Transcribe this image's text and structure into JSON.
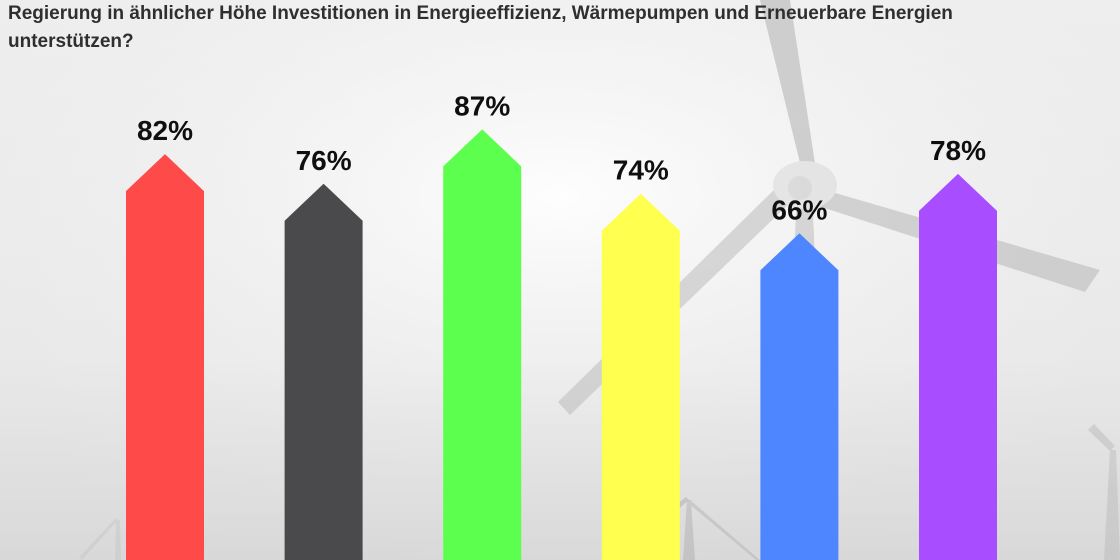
{
  "question": {
    "line1": "Regierung in ähnlicher Höhe Investitionen in Energieeffizienz, Wärmepumpen und Erneuerbare Energien",
    "line2": "unterstützen?"
  },
  "chart_data": {
    "type": "bar",
    "title": "Regierung in ähnlicher Höhe Investitionen in Energieeffizienz, Wärmepumpen und Erneuerbare Energien unterstützen?",
    "xlabel": "",
    "ylabel": "",
    "ylim": [
      0,
      100
    ],
    "grid": false,
    "legend": "none",
    "categories": [
      "",
      "",
      "",
      "",
      "",
      ""
    ],
    "values": [
      82,
      76,
      87,
      74,
      66,
      78
    ],
    "value_labels": [
      "82%",
      "76%",
      "87%",
      "74%",
      "66%",
      "78%"
    ],
    "colors": [
      "#ff4a4a",
      "#4a4a4d",
      "#5dff4f",
      "#ffff4f",
      "#4d86ff",
      "#a84dff"
    ]
  }
}
